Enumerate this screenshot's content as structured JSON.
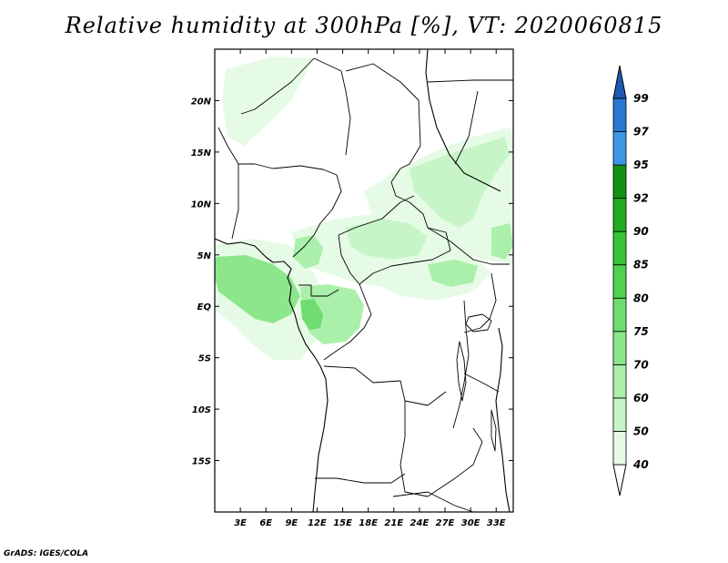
{
  "title": "Relative humidity at 300hPa [%], VT: 2020060815",
  "credit": "GrADS: IGES/COLA",
  "map": {
    "lon_range": [
      0,
      35
    ],
    "lat_range": [
      -20,
      25
    ],
    "lat_ticks": [
      {
        "value": 20,
        "label": "20N"
      },
      {
        "value": 15,
        "label": "15N"
      },
      {
        "value": 10,
        "label": "10N"
      },
      {
        "value": 5,
        "label": "5N"
      },
      {
        "value": 0,
        "label": "EQ"
      },
      {
        "value": -5,
        "label": "5S"
      },
      {
        "value": -10,
        "label": "10S"
      },
      {
        "value": -15,
        "label": "15S"
      }
    ],
    "lon_ticks": [
      {
        "value": 3,
        "label": "3E"
      },
      {
        "value": 6,
        "label": "6E"
      },
      {
        "value": 9,
        "label": "9E"
      },
      {
        "value": 12,
        "label": "12E"
      },
      {
        "value": 15,
        "label": "15E"
      },
      {
        "value": 18,
        "label": "18E"
      },
      {
        "value": 21,
        "label": "21E"
      },
      {
        "value": 24,
        "label": "24E"
      },
      {
        "value": 27,
        "label": "27E"
      },
      {
        "value": 30,
        "label": "30E"
      },
      {
        "value": 33,
        "label": "33E"
      }
    ]
  },
  "colorbar": {
    "levels": [
      "40",
      "50",
      "60",
      "70",
      "75",
      "80",
      "85",
      "90",
      "92",
      "95",
      "97",
      "99"
    ],
    "colors": [
      "#e6fbe6",
      "#c8f5c8",
      "#aaefaa",
      "#8ce68c",
      "#6edc6e",
      "#50d250",
      "#38c438",
      "#22aa22",
      "#129012",
      "#3c96e6",
      "#2878d2",
      "#1e5ab4"
    ]
  },
  "colors": {
    "coastline": "#000000",
    "background": "#ffffff"
  }
}
